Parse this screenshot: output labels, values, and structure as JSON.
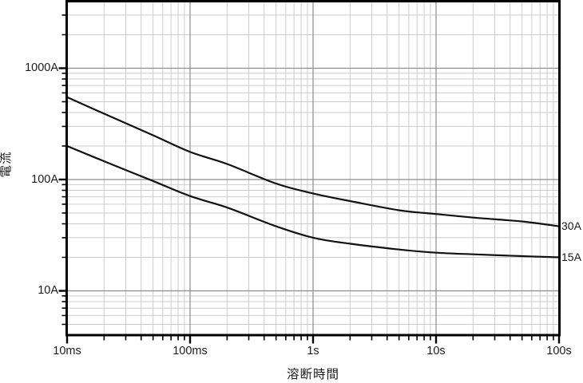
{
  "chart_data": {
    "type": "line",
    "xlabel": "溶断時間",
    "ylabel": "電流",
    "x_scale": "log",
    "y_scale": "log",
    "xlim": [
      0.01,
      100
    ],
    "ylim": [
      4,
      4000
    ],
    "grid": "major and minor log grid on",
    "legend_position": "labels at right end of curves",
    "x_ticks": [
      {
        "value": 0.01,
        "label": "10ms"
      },
      {
        "value": 0.1,
        "label": "100ms"
      },
      {
        "value": 1,
        "label": "1s"
      },
      {
        "value": 10,
        "label": "10s"
      },
      {
        "value": 100,
        "label": "100s"
      }
    ],
    "y_ticks": [
      {
        "value": 1000,
        "label": "1000A"
      },
      {
        "value": 100,
        "label": "100A"
      },
      {
        "value": 10,
        "label": "10A"
      }
    ],
    "x": [
      0.01,
      0.02,
      0.05,
      0.1,
      0.2,
      0.5,
      1,
      2,
      5,
      10,
      20,
      50,
      100
    ],
    "series": [
      {
        "name": "30A",
        "values": [
          550,
          390,
          250,
          177,
          138,
          92,
          75,
          64,
          53,
          49,
          45.5,
          42,
          38
        ]
      },
      {
        "name": "15A",
        "values": [
          200,
          146,
          97,
          71,
          56,
          38,
          30,
          26.5,
          23.5,
          22,
          21.3,
          20.5,
          20
        ]
      }
    ],
    "colors": {
      "curve": "#111111",
      "grid_major": "#8c8c8c",
      "grid_minor": "#cccccc",
      "axis": "#000000",
      "text": "#1a1a1a",
      "background": "#ffffff"
    }
  }
}
